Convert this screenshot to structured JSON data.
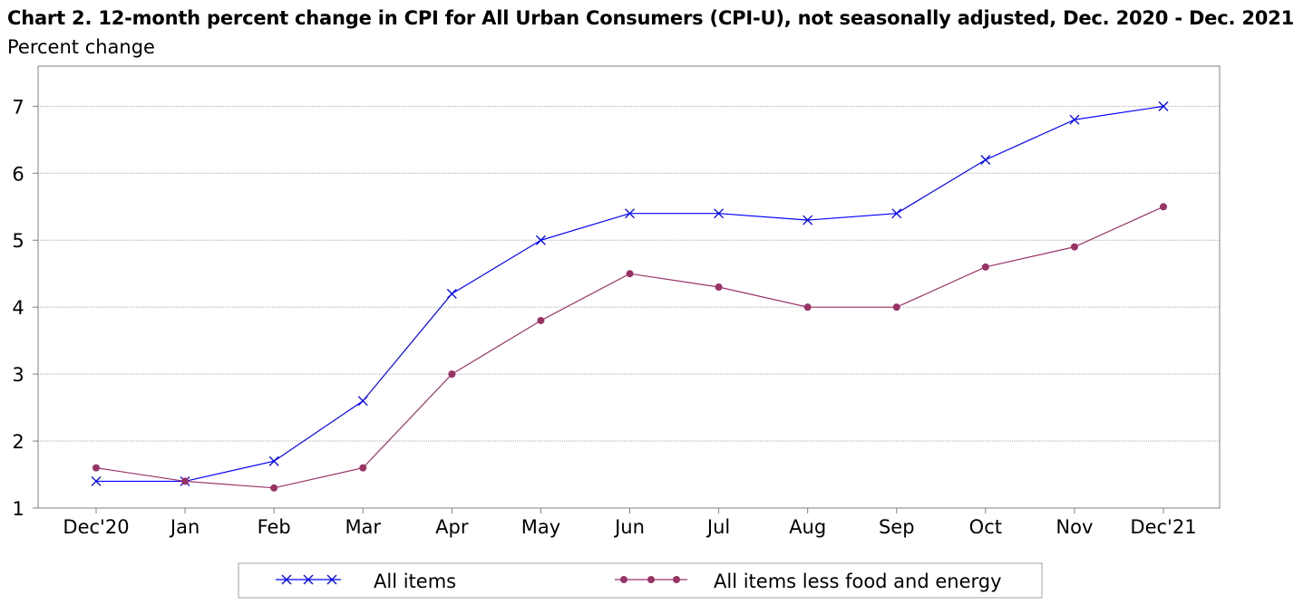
{
  "title": "Chart 2. 12-month percent change in CPI for All Urban Consumers (CPI-U), not seasonally adjusted, Dec. 2020 - Dec. 2021",
  "subtitle": "Percent change",
  "chart_data": {
    "type": "line",
    "title": "Chart 2. 12-month percent change in CPI for All Urban Consumers (CPI-U), not seasonally adjusted, Dec. 2020 - Dec. 2021",
    "ylabel": "Percent change",
    "xlabel": "",
    "categories": [
      "Dec'20",
      "Jan",
      "Feb",
      "Mar",
      "Apr",
      "May",
      "Jun",
      "Jul",
      "Aug",
      "Sep",
      "Oct",
      "Nov",
      "Dec'21"
    ],
    "ylim": [
      1,
      7.6
    ],
    "yticks": [
      1,
      2,
      3,
      4,
      5,
      6,
      7
    ],
    "grid": true,
    "legend_position": "bottom",
    "series": [
      {
        "name": "All items",
        "color": "#0000ff",
        "marker": "x",
        "values": [
          1.4,
          1.4,
          1.7,
          2.6,
          4.2,
          5.0,
          5.4,
          5.4,
          5.3,
          5.4,
          6.2,
          6.8,
          7.0
        ]
      },
      {
        "name": "All items less food and energy",
        "color": "#993366",
        "marker": "dot",
        "values": [
          1.6,
          1.4,
          1.3,
          1.6,
          3.0,
          3.8,
          4.5,
          4.3,
          4.0,
          4.0,
          4.6,
          4.9,
          5.5
        ]
      }
    ]
  }
}
